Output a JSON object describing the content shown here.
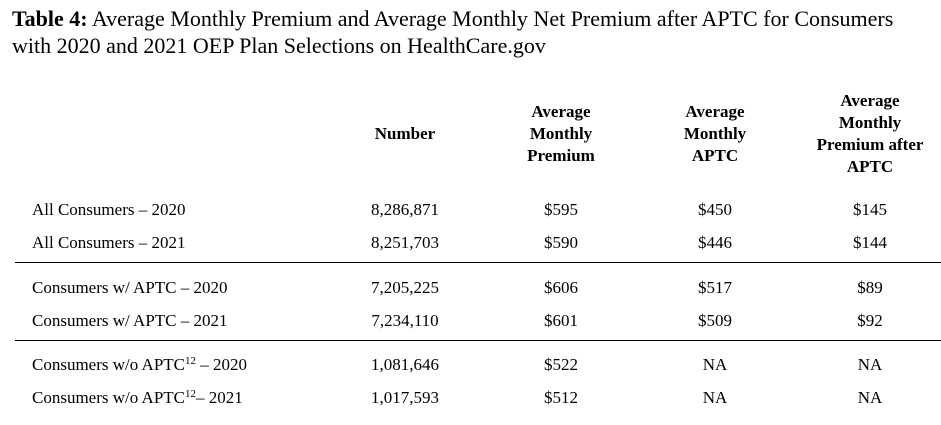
{
  "title": {
    "label": "Table 4:",
    "text": "Average Monthly Premium and Average Monthly Net Premium after APTC for Consumers with 2020 and 2021 OEP Plan Selections on HealthCare.gov"
  },
  "table": {
    "headers": [
      "Number",
      "Average Monthly Premium",
      "Average Monthly APTC",
      "Average Monthly Premium after APTC"
    ],
    "groups": [
      {
        "rows": [
          {
            "label": "All Consumers – 2020",
            "cells": [
              "8,286,871",
              "$595",
              "$450",
              "$145"
            ]
          },
          {
            "label": "All Consumers – 2021",
            "cells": [
              "8,251,703",
              "$590",
              "$446",
              "$144"
            ]
          }
        ]
      },
      {
        "rows": [
          {
            "label": "Consumers w/ APTC – 2020",
            "cells": [
              "7,205,225",
              "$606",
              "$517",
              "$89"
            ]
          },
          {
            "label": "Consumers w/ APTC – 2021",
            "cells": [
              "7,234,110",
              "$601",
              "$509",
              "$92"
            ]
          }
        ]
      },
      {
        "rows": [
          {
            "label": "Consumers w/o APTC",
            "note": "12",
            "suffix": " – 2020",
            "cells": [
              "1,081,646",
              "$522",
              "NA",
              "NA"
            ]
          },
          {
            "label": "Consumers w/o APTC",
            "note": "12",
            "suffix": "– 2021",
            "cells": [
              "1,017,593",
              "$512",
              "NA",
              "NA"
            ]
          }
        ]
      }
    ]
  }
}
